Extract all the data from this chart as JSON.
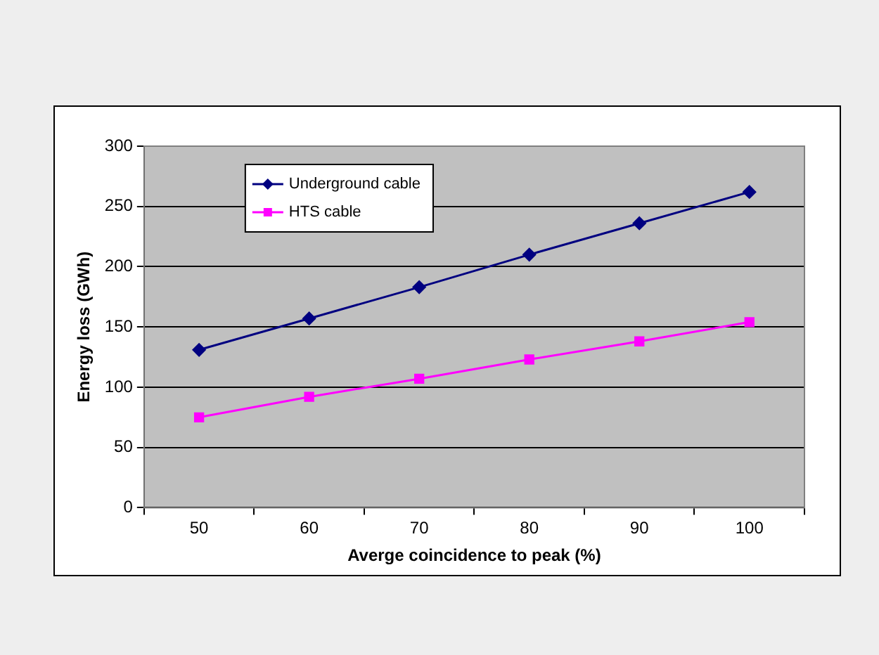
{
  "chart_data": {
    "type": "line",
    "xlabel": "Averge coincidence to peak (%)",
    "ylabel": "Energy loss (GWh)",
    "categories": [
      "50",
      "60",
      "70",
      "80",
      "90",
      "100"
    ],
    "series": [
      {
        "name": "Underground cable",
        "color": "#000080",
        "marker": "diamond",
        "values": [
          131,
          157,
          183,
          210,
          236,
          262
        ]
      },
      {
        "name": "HTS cable",
        "color": "#ff00ff",
        "marker": "square",
        "values": [
          75,
          92,
          107,
          123,
          138,
          154
        ]
      }
    ],
    "ylim": [
      0,
      300
    ],
    "yticks": [
      0,
      50,
      100,
      150,
      200,
      250,
      300
    ],
    "grid": "y",
    "legend": "top left",
    "line_style": "solid"
  }
}
